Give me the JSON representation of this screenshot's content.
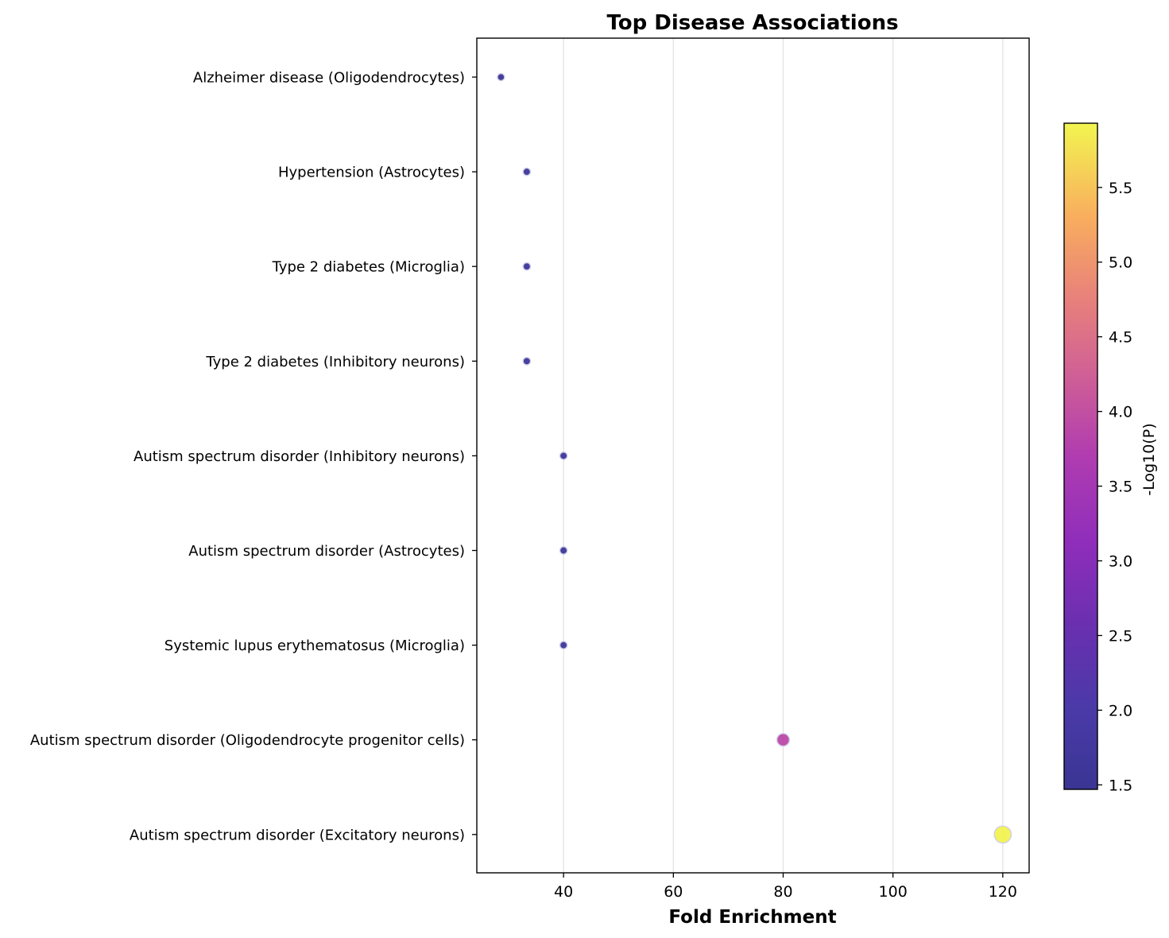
{
  "chart_data": {
    "type": "scatter",
    "title": "Top Disease Associations",
    "xlabel": "Fold Enrichment",
    "ylabel": "",
    "xlim": [
      24.2,
      124.8
    ],
    "xticks": [
      40,
      60,
      80,
      100,
      120
    ],
    "grid": "vertical",
    "categories": [
      "Alzheimer disease (Oligodendrocytes)",
      "Hypertension (Astrocytes)",
      "Type 2 diabetes (Microglia)",
      "Type 2 diabetes (Inhibitory neurons)",
      "Autism spectrum disorder (Inhibitory neurons)",
      "Autism spectrum disorder (Astrocytes)",
      "Systemic lupus erythematosus (Microglia)",
      "Autism spectrum disorder (Oligodendrocyte progenitor cells)",
      "Autism spectrum disorder (Excitatory neurons)"
    ],
    "points": [
      {
        "category": "Alzheimer disease (Oligodendrocytes)",
        "x": 28.6,
        "neg_log10_p": 1.5
      },
      {
        "category": "Hypertension (Astrocytes)",
        "x": 33.3,
        "neg_log10_p": 1.6
      },
      {
        "category": "Type 2 diabetes (Microglia)",
        "x": 33.3,
        "neg_log10_p": 1.6
      },
      {
        "category": "Type 2 diabetes (Inhibitory neurons)",
        "x": 33.3,
        "neg_log10_p": 1.6
      },
      {
        "category": "Autism spectrum disorder (Inhibitory neurons)",
        "x": 40.0,
        "neg_log10_p": 1.6
      },
      {
        "category": "Autism spectrum disorder (Astrocytes)",
        "x": 40.0,
        "neg_log10_p": 1.6
      },
      {
        "category": "Systemic lupus erythematosus (Microglia)",
        "x": 40.0,
        "neg_log10_p": 1.6
      },
      {
        "category": "Autism spectrum disorder (Oligodendrocyte progenitor cells)",
        "x": 80.0,
        "neg_log10_p": 3.9
      },
      {
        "category": "Autism spectrum disorder (Excitatory neurons)",
        "x": 120.0,
        "neg_log10_p": 5.9
      }
    ],
    "colorbar": {
      "label": "-Log10(P)",
      "colormap": "plasma",
      "range": [
        1.47,
        5.93
      ],
      "ticks": [
        1.5,
        2.0,
        2.5,
        3.0,
        3.5,
        4.0,
        4.5,
        5.0,
        5.5
      ],
      "tick_labels": [
        "1.5",
        "2.0",
        "2.5",
        "3.0",
        "3.5",
        "4.0",
        "4.5",
        "5.0",
        "5.5"
      ]
    }
  }
}
